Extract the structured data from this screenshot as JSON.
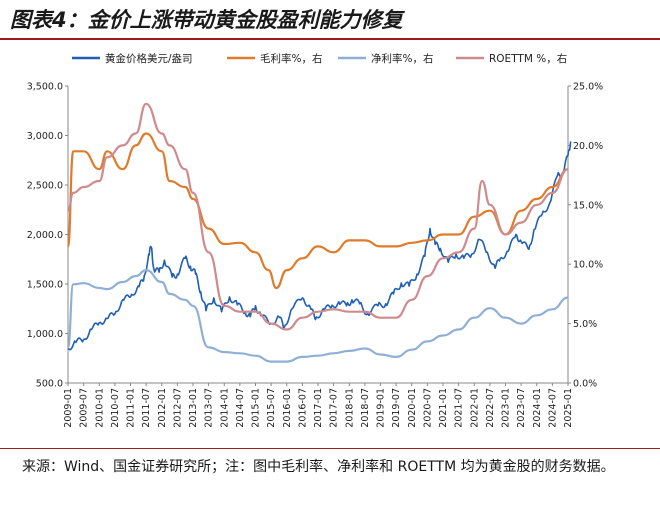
{
  "title": "图表4：金价上涨带动黄金股盈利能力修复",
  "note": "来源：Wind、国金证券研究所；注：图中毛利率、净利率和 ROETTM 均为黄金股的财务数据。",
  "chart_data": {
    "type": "line",
    "title": "",
    "legend_position": "top",
    "y_left": {
      "min": 500,
      "max": 3500,
      "ticks": [
        "500.0",
        "1,000.0",
        "1,500.0",
        "2,000.0",
        "2,500.0",
        "3,000.0",
        "3,500.0"
      ]
    },
    "y_right": {
      "min": 0,
      "max": 25,
      "ticks": [
        "0.0%",
        "5.0%",
        "10.0%",
        "15.0%",
        "20.0%",
        "25.0%"
      ]
    },
    "x_range": [
      "2009-01",
      "2025-01"
    ],
    "x_ticks": [
      "2009-01",
      "2009-07",
      "2010-01",
      "2010-07",
      "2011-01",
      "2011-07",
      "2012-01",
      "2012-07",
      "2013-01",
      "2013-07",
      "2014-01",
      "2014-07",
      "2015-01",
      "2015-07",
      "2016-01",
      "2016-07",
      "2017-01",
      "2017-07",
      "2018-01",
      "2018-07",
      "2019-01",
      "2019-07",
      "2020-01",
      "2020-07",
      "2021-01",
      "2021-07",
      "2022-01",
      "2022-07",
      "2023-01",
      "2023-07",
      "2024-01",
      "2024-07",
      "2025-01"
    ],
    "series": [
      {
        "name": "黄金价格美元/盎司",
        "axis": "left",
        "color": "#1f5fb4",
        "points": [
          [
            "2009-01",
            850
          ],
          [
            "2009-04",
            910
          ],
          [
            "2009-07",
            940
          ],
          [
            "2009-10",
            1040
          ],
          [
            "2010-01",
            1110
          ],
          [
            "2010-04",
            1150
          ],
          [
            "2010-07",
            1200
          ],
          [
            "2010-10",
            1340
          ],
          [
            "2011-01",
            1370
          ],
          [
            "2011-04",
            1480
          ],
          [
            "2011-06",
            1530
          ],
          [
            "2011-08",
            1800
          ],
          [
            "2011-09",
            1870
          ],
          [
            "2011-10",
            1650
          ],
          [
            "2011-12",
            1620
          ],
          [
            "2012-02",
            1740
          ],
          [
            "2012-05",
            1570
          ],
          [
            "2012-07",
            1600
          ],
          [
            "2012-10",
            1760
          ],
          [
            "2012-12",
            1680
          ],
          [
            "2013-02",
            1600
          ],
          [
            "2013-04",
            1420
          ],
          [
            "2013-06",
            1230
          ],
          [
            "2013-09",
            1360
          ],
          [
            "2013-12",
            1220
          ],
          [
            "2014-03",
            1370
          ],
          [
            "2014-06",
            1290
          ],
          [
            "2014-09",
            1220
          ],
          [
            "2014-11",
            1170
          ],
          [
            "2015-01",
            1280
          ],
          [
            "2015-03",
            1180
          ],
          [
            "2015-07",
            1100
          ],
          [
            "2015-10",
            1170
          ],
          [
            "2015-12",
            1060
          ],
          [
            "2016-03",
            1250
          ],
          [
            "2016-07",
            1360
          ],
          [
            "2016-10",
            1270
          ],
          [
            "2016-12",
            1140
          ],
          [
            "2017-03",
            1250
          ],
          [
            "2017-06",
            1260
          ],
          [
            "2017-09",
            1320
          ],
          [
            "2017-12",
            1280
          ],
          [
            "2018-02",
            1340
          ],
          [
            "2018-05",
            1300
          ],
          [
            "2018-08",
            1200
          ],
          [
            "2018-12",
            1280
          ],
          [
            "2019-03",
            1300
          ],
          [
            "2019-06",
            1400
          ],
          [
            "2019-09",
            1510
          ],
          [
            "2019-12",
            1480
          ],
          [
            "2020-03",
            1600
          ],
          [
            "2020-06",
            1780
          ],
          [
            "2020-08",
            2060
          ],
          [
            "2020-10",
            1900
          ],
          [
            "2020-12",
            1860
          ],
          [
            "2021-03",
            1720
          ],
          [
            "2021-06",
            1800
          ],
          [
            "2021-09",
            1760
          ],
          [
            "2021-12",
            1800
          ],
          [
            "2022-03",
            1950
          ],
          [
            "2022-06",
            1820
          ],
          [
            "2022-09",
            1660
          ],
          [
            "2022-11",
            1760
          ],
          [
            "2023-02",
            1830
          ],
          [
            "2023-05",
            2000
          ],
          [
            "2023-07",
            1930
          ],
          [
            "2023-10",
            1850
          ],
          [
            "2023-12",
            2050
          ],
          [
            "2024-03",
            2200
          ],
          [
            "2024-06",
            2320
          ],
          [
            "2024-09",
            2600
          ],
          [
            "2024-11",
            2620
          ],
          [
            "2025-01",
            2800
          ],
          [
            "2025-02",
            2940
          ]
        ]
      },
      {
        "name": "毛利率%，右",
        "axis": "right",
        "color": "#e07b2a",
        "points": [
          [
            "2009-01",
            11.5
          ],
          [
            "2009-03",
            19.5
          ],
          [
            "2009-07",
            19.5
          ],
          [
            "2010-01",
            18.0
          ],
          [
            "2010-04",
            19.5
          ],
          [
            "2010-10",
            18.0
          ],
          [
            "2011-03",
            20.0
          ],
          [
            "2011-07",
            21.0
          ],
          [
            "2012-01",
            19.5
          ],
          [
            "2012-04",
            17.0
          ],
          [
            "2012-10",
            16.5
          ],
          [
            "2013-01",
            15.5
          ],
          [
            "2013-07",
            13.0
          ],
          [
            "2014-01",
            11.7
          ],
          [
            "2014-07",
            11.8
          ],
          [
            "2015-01",
            11.0
          ],
          [
            "2015-06",
            9.5
          ],
          [
            "2015-09",
            8.0
          ],
          [
            "2016-01",
            9.5
          ],
          [
            "2016-07",
            10.5
          ],
          [
            "2017-01",
            11.5
          ],
          [
            "2017-07",
            11.0
          ],
          [
            "2018-01",
            12.0
          ],
          [
            "2018-07",
            12.0
          ],
          [
            "2019-01",
            11.5
          ],
          [
            "2019-07",
            11.5
          ],
          [
            "2020-01",
            11.8
          ],
          [
            "2020-07",
            12.0
          ],
          [
            "2021-01",
            12.5
          ],
          [
            "2021-07",
            12.5
          ],
          [
            "2022-01",
            14.0
          ],
          [
            "2022-07",
            14.5
          ],
          [
            "2023-01",
            12.5
          ],
          [
            "2023-07",
            14.5
          ],
          [
            "2024-01",
            15.5
          ],
          [
            "2024-07",
            16.5
          ],
          [
            "2025-01",
            18.0
          ]
        ]
      },
      {
        "name": "净利率%，右",
        "axis": "right",
        "color": "#8fb0d6",
        "points": [
          [
            "2009-01",
            3.0
          ],
          [
            "2009-03",
            8.3
          ],
          [
            "2009-07",
            8.4
          ],
          [
            "2010-01",
            8.0
          ],
          [
            "2010-04",
            7.9
          ],
          [
            "2010-10",
            8.5
          ],
          [
            "2011-03",
            9.0
          ],
          [
            "2011-07",
            9.5
          ],
          [
            "2012-01",
            8.5
          ],
          [
            "2012-04",
            7.5
          ],
          [
            "2012-10",
            7.0
          ],
          [
            "2013-01",
            6.5
          ],
          [
            "2013-07",
            3.0
          ],
          [
            "2014-01",
            2.6
          ],
          [
            "2014-07",
            2.5
          ],
          [
            "2015-01",
            2.3
          ],
          [
            "2015-07",
            1.8
          ],
          [
            "2016-01",
            1.8
          ],
          [
            "2016-07",
            2.2
          ],
          [
            "2017-01",
            2.3
          ],
          [
            "2017-07",
            2.5
          ],
          [
            "2018-01",
            2.7
          ],
          [
            "2018-07",
            2.9
          ],
          [
            "2019-01",
            2.4
          ],
          [
            "2019-07",
            2.2
          ],
          [
            "2020-01",
            2.8
          ],
          [
            "2020-07",
            3.5
          ],
          [
            "2021-01",
            4.0
          ],
          [
            "2021-07",
            4.5
          ],
          [
            "2022-01",
            5.5
          ],
          [
            "2022-07",
            6.3
          ],
          [
            "2023-01",
            5.5
          ],
          [
            "2023-07",
            5.0
          ],
          [
            "2024-01",
            5.7
          ],
          [
            "2024-07",
            6.2
          ],
          [
            "2025-01",
            7.2
          ]
        ]
      },
      {
        "name": "ROETTM %，右",
        "axis": "right",
        "color": "#cf8a8e",
        "points": [
          [
            "2009-01",
            14.5
          ],
          [
            "2009-03",
            16.0
          ],
          [
            "2009-07",
            16.5
          ],
          [
            "2010-01",
            17.0
          ],
          [
            "2010-04",
            19.0
          ],
          [
            "2010-10",
            20.0
          ],
          [
            "2011-03",
            21.0
          ],
          [
            "2011-07",
            23.5
          ],
          [
            "2012-01",
            21.0
          ],
          [
            "2012-04",
            20.0
          ],
          [
            "2012-10",
            18.0
          ],
          [
            "2013-01",
            16.0
          ],
          [
            "2013-07",
            11.0
          ],
          [
            "2014-01",
            6.5
          ],
          [
            "2014-07",
            6.0
          ],
          [
            "2015-01",
            6.0
          ],
          [
            "2015-07",
            5.0
          ],
          [
            "2016-01",
            4.5
          ],
          [
            "2016-07",
            5.5
          ],
          [
            "2017-01",
            6.0
          ],
          [
            "2017-07",
            6.2
          ],
          [
            "2018-01",
            6.0
          ],
          [
            "2018-07",
            6.0
          ],
          [
            "2019-01",
            5.5
          ],
          [
            "2019-07",
            5.5
          ],
          [
            "2020-01",
            7.0
          ],
          [
            "2020-07",
            9.0
          ],
          [
            "2021-01",
            10.5
          ],
          [
            "2021-07",
            11.0
          ],
          [
            "2022-01",
            13.0
          ],
          [
            "2022-04",
            17.0
          ],
          [
            "2022-07",
            15.0
          ],
          [
            "2023-01",
            12.5
          ],
          [
            "2023-07",
            13.5
          ],
          [
            "2024-01",
            15.0
          ],
          [
            "2024-07",
            16.0
          ],
          [
            "2025-01",
            18.0
          ]
        ]
      }
    ]
  }
}
